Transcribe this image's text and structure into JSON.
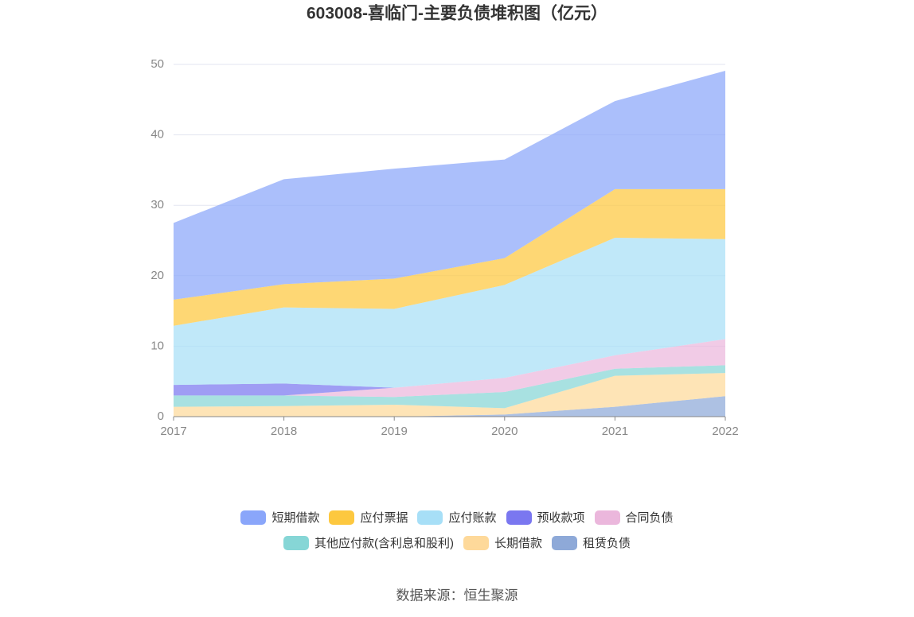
{
  "chart_data": {
    "type": "stacked-area",
    "title": "603008-喜临门-主要负债堆积图（亿元）",
    "categories": [
      "2017",
      "2018",
      "2019",
      "2020",
      "2021",
      "2022"
    ],
    "series": [
      {
        "name": "短期借款",
        "color": "#8aa6fa",
        "values": [
          10.9,
          14.9,
          15.6,
          14.0,
          12.5,
          16.8
        ]
      },
      {
        "name": "应付票据",
        "color": "#fdc83f",
        "values": [
          3.7,
          3.3,
          4.3,
          3.8,
          6.9,
          7.1
        ]
      },
      {
        "name": "应付账款",
        "color": "#a7dff7",
        "values": [
          8.4,
          10.8,
          11.2,
          13.2,
          16.7,
          14.2
        ]
      },
      {
        "name": "预收款项",
        "color": "#7a77f0",
        "values": [
          1.5,
          1.7,
          0,
          0,
          0,
          0
        ]
      },
      {
        "name": "合同负债",
        "color": "#ebb7dc",
        "values": [
          0,
          0,
          1.3,
          2.0,
          1.9,
          3.7
        ]
      },
      {
        "name": "其他应付款(含利息和股利)",
        "color": "#86d6d6",
        "values": [
          1.6,
          1.5,
          1.1,
          2.3,
          1.0,
          1.1
        ]
      },
      {
        "name": "长期借款",
        "color": "#fed99a",
        "values": [
          1.4,
          1.5,
          1.7,
          0.9,
          4.4,
          3.3
        ]
      },
      {
        "name": "租赁负债",
        "color": "#8ea9d8",
        "values": [
          0,
          0,
          0,
          0.3,
          1.4,
          2.9
        ]
      }
    ],
    "ylim": [
      0,
      50
    ],
    "yticks": [
      0,
      10,
      20,
      30,
      40,
      50
    ],
    "grid": true,
    "source": "数据来源：恒生聚源"
  }
}
